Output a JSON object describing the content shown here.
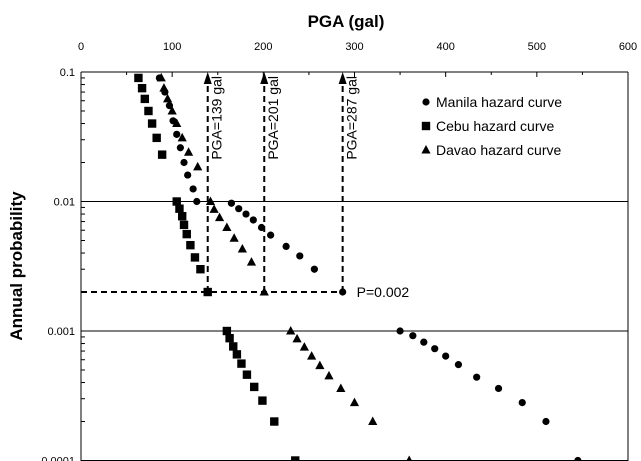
{
  "chart_data": {
    "type": "scatter",
    "title": "",
    "xlabel": "PGA (gal)",
    "ylabel": "Annual probability",
    "xlim": [
      0,
      600
    ],
    "ylim": [
      0.0001,
      0.1
    ],
    "y_scale": "log",
    "x_axis_position": "top",
    "grid": "horizontal lines at decades",
    "legend_position": "top-right",
    "x_ticks": [
      "0",
      "100",
      "200",
      "300",
      "400",
      "500",
      "600"
    ],
    "y_ticks": [
      "0.1",
      "0.01",
      "0.001",
      "0.0001"
    ],
    "series": [
      {
        "name": "Manila hazard curve",
        "marker": "circle",
        "points": [
          [
            86,
            0.09
          ],
          [
            92,
            0.07
          ],
          [
            97,
            0.055
          ],
          [
            101,
            0.042
          ],
          [
            105,
            0.033
          ],
          [
            109,
            0.026
          ],
          [
            113,
            0.02
          ],
          [
            117,
            0.016
          ],
          [
            123,
            0.0125
          ],
          [
            127,
            0.01
          ],
          [
            165,
            0.0097
          ],
          [
            173,
            0.0088
          ],
          [
            181,
            0.008
          ],
          [
            189,
            0.0072
          ],
          [
            198,
            0.0063
          ],
          [
            208,
            0.0055
          ],
          [
            225,
            0.0045
          ],
          [
            240,
            0.0038
          ],
          [
            256,
            0.003
          ],
          [
            287,
            0.002
          ],
          [
            350,
            0.001
          ],
          [
            364,
            0.00092
          ],
          [
            376,
            0.00082
          ],
          [
            388,
            0.00073
          ],
          [
            400,
            0.00064
          ],
          [
            414,
            0.00055
          ],
          [
            434,
            0.00044
          ],
          [
            458,
            0.00036
          ],
          [
            484,
            0.00028
          ],
          [
            510,
            0.0002
          ],
          [
            545,
            0.0001
          ]
        ]
      },
      {
        "name": "Cebu hazard curve",
        "marker": "square",
        "points": [
          [
            63,
            0.09
          ],
          [
            67,
            0.075
          ],
          [
            70,
            0.062
          ],
          [
            74,
            0.05
          ],
          [
            78,
            0.04
          ],
          [
            83,
            0.031
          ],
          [
            89,
            0.023
          ],
          [
            105,
            0.01
          ],
          [
            108,
            0.0088
          ],
          [
            111,
            0.0077
          ],
          [
            113,
            0.0066
          ],
          [
            116,
            0.0056
          ],
          [
            120,
            0.0046
          ],
          [
            125,
            0.0037
          ],
          [
            131,
            0.003
          ],
          [
            139,
            0.002
          ],
          [
            160,
            0.001
          ],
          [
            163,
            0.00088
          ],
          [
            167,
            0.00076
          ],
          [
            171,
            0.00066
          ],
          [
            176,
            0.00056
          ],
          [
            182,
            0.00046
          ],
          [
            190,
            0.00037
          ],
          [
            199,
            0.00029
          ],
          [
            212,
            0.0002
          ],
          [
            235,
            0.0001
          ]
        ]
      },
      {
        "name": "Davao hazard curve",
        "marker": "triangle",
        "points": [
          [
            88,
            0.09
          ],
          [
            91,
            0.075
          ],
          [
            95,
            0.062
          ],
          [
            100,
            0.05
          ],
          [
            105,
            0.04
          ],
          [
            111,
            0.031
          ],
          [
            118,
            0.024
          ],
          [
            128,
            0.0185
          ],
          [
            142,
            0.01
          ],
          [
            146,
            0.0087
          ],
          [
            152,
            0.0075
          ],
          [
            160,
            0.0063
          ],
          [
            168,
            0.0052
          ],
          [
            177,
            0.0043
          ],
          [
            187,
            0.0034
          ],
          [
            201,
            0.002
          ],
          [
            230,
            0.001
          ],
          [
            237,
            0.00087
          ],
          [
            245,
            0.00075
          ],
          [
            253,
            0.00064
          ],
          [
            262,
            0.00054
          ],
          [
            272,
            0.00045
          ],
          [
            285,
            0.00036
          ],
          [
            300,
            0.00028
          ],
          [
            320,
            0.0002
          ],
          [
            360,
            0.0001
          ]
        ]
      }
    ],
    "annotations": [
      {
        "text": "PGA=139 gal",
        "x": 139
      },
      {
        "text": "PGA=201 gal",
        "x": 201
      },
      {
        "text": "PGA=287 gal",
        "x": 287
      },
      {
        "text": "P=0.002",
        "y": 0.002
      }
    ],
    "reference_y": 0.002
  }
}
